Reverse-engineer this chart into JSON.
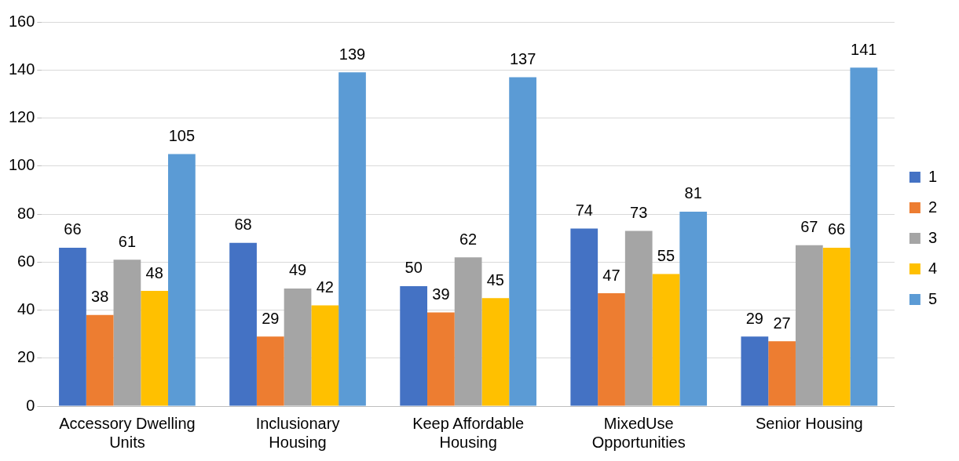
{
  "chart_data": {
    "type": "bar",
    "categories": [
      "Accessory Dwelling Units",
      "Inclusionary Housing",
      "Keep Affordable Housing",
      "MixedUse Opportunities",
      "Senior Housing"
    ],
    "series": [
      {
        "name": "1",
        "color": "#4472c4",
        "values": [
          66,
          68,
          50,
          74,
          29
        ]
      },
      {
        "name": "2",
        "color": "#ed7d31",
        "values": [
          38,
          29,
          39,
          47,
          27
        ]
      },
      {
        "name": "3",
        "color": "#a5a5a5",
        "values": [
          61,
          49,
          62,
          73,
          67
        ]
      },
      {
        "name": "4",
        "color": "#ffc000",
        "values": [
          48,
          42,
          45,
          55,
          66
        ]
      },
      {
        "name": "5",
        "color": "#5b9bd5",
        "values": [
          105,
          139,
          137,
          81,
          141
        ]
      }
    ],
    "ylim": [
      0,
      160
    ],
    "yticks": [
      0,
      20,
      40,
      60,
      80,
      100,
      120,
      140,
      160
    ],
    "grid": "y",
    "legend": "right",
    "data_labels": true
  }
}
